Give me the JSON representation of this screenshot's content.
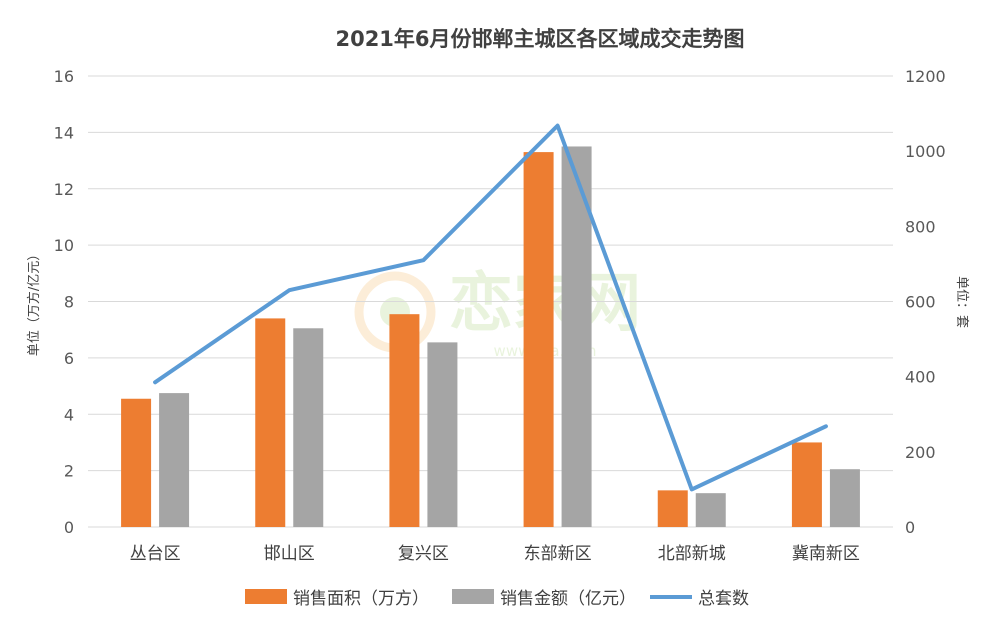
{
  "chart_data": {
    "type": "bar",
    "title": "2021年6月份邯郸主城区各区域成交走势图",
    "ylabel_left": "单位（万方/亿元）",
    "ylabel_right": "单位：套",
    "categories": [
      "丛台区",
      "邯山区",
      "复兴区",
      "东部新区",
      "北部新城",
      "冀南新区"
    ],
    "y_left_ticks": [
      "0",
      "2",
      "4",
      "6",
      "8",
      "10",
      "12",
      "14",
      "16"
    ],
    "y_right_ticks": [
      "0",
      "200",
      "400",
      "600",
      "800",
      "1000",
      "1200"
    ],
    "ylim_left": [
      0,
      16
    ],
    "ylim_right": [
      0,
      1200
    ],
    "grid": true,
    "legend_position": "bottom",
    "series": [
      {
        "name": "销售面积（万方）",
        "type": "bar",
        "axis": "left",
        "color": "#ED7D31",
        "values": [
          4.55,
          7.4,
          7.55,
          13.3,
          1.3,
          3.0
        ]
      },
      {
        "name": "销售金额（亿元）",
        "type": "bar",
        "axis": "left",
        "color": "#A5A5A5",
        "values": [
          4.75,
          7.05,
          6.55,
          13.5,
          1.2,
          2.05
        ]
      },
      {
        "name": "总套数",
        "type": "line",
        "axis": "right",
        "color": "#5B9BD5",
        "values": [
          385,
          630,
          710,
          1068,
          100,
          268
        ]
      }
    ]
  },
  "watermark": {
    "brand_text": "恋家网",
    "url_text": "www.Ljia.com"
  }
}
